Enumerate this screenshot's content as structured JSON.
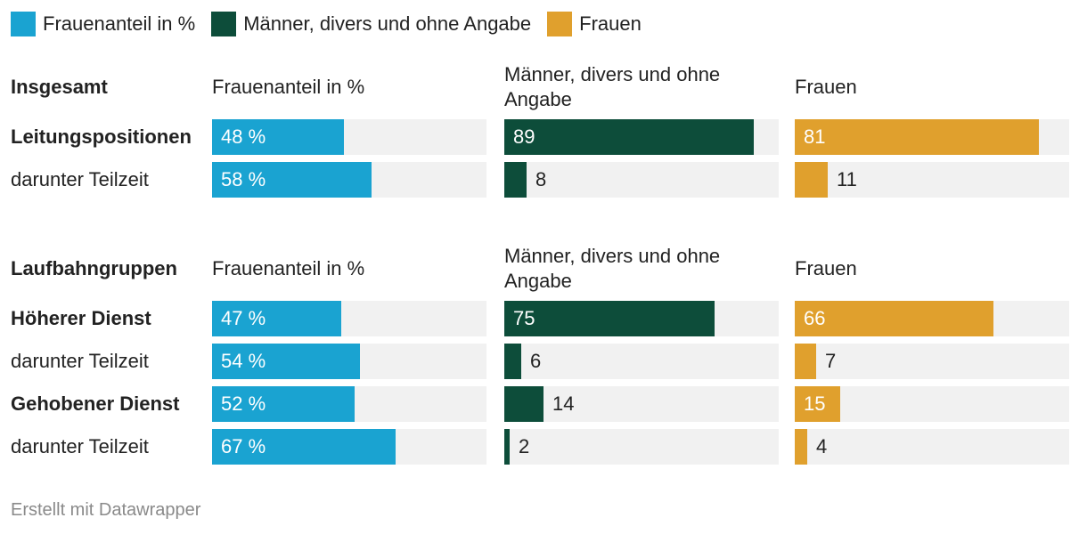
{
  "colors": {
    "share": "#1aa3d1",
    "men": "#0d4d3a",
    "women": "#e0a02d",
    "track": "#f1f1f1"
  },
  "legend": [
    {
      "label": "Frauenanteil in %",
      "color": "#1aa3d1"
    },
    {
      "label": "Männer, divers und ohne Angabe",
      "color": "#0d4d3a"
    },
    {
      "label": "Frauen",
      "color": "#e0a02d"
    }
  ],
  "footer": "Erstellt mit Datawrapper",
  "chart_data": {
    "type": "bar",
    "columns": [
      {
        "key": "share",
        "name": "Frauenanteil in %",
        "unit": "%",
        "xlim": [
          0,
          100
        ]
      },
      {
        "key": "men",
        "name": "Männer, divers und ohne Angabe",
        "xlim": [
          0,
          98
        ]
      },
      {
        "key": "women",
        "name": "Frauen",
        "xlim": [
          0,
          91
        ]
      }
    ],
    "sections": [
      {
        "title": "Insgesamt",
        "headers": [
          "Frauenanteil in %",
          "Männer, divers und ohne Angabe",
          "Frauen"
        ],
        "rows": [
          {
            "label": "Leitungspositionen",
            "bold": true,
            "share": 48,
            "men": 89,
            "women": 81,
            "share_label": "48 %",
            "men_label": "89",
            "women_label": "81"
          },
          {
            "label": "darunter Teilzeit",
            "bold": false,
            "share": 58,
            "men": 8,
            "women": 11,
            "share_label": "58 %",
            "men_label": "8",
            "women_label": "11"
          }
        ]
      },
      {
        "title": "Laufbahngruppen",
        "headers": [
          "Frauenanteil in %",
          "Männer, divers und ohne Angabe",
          "Frauen"
        ],
        "rows": [
          {
            "label": "Höherer Dienst",
            "bold": true,
            "share": 47,
            "men": 75,
            "women": 66,
            "share_label": "47 %",
            "men_label": "75",
            "women_label": "66"
          },
          {
            "label": "darunter Teilzeit",
            "bold": false,
            "share": 54,
            "men": 6,
            "women": 7,
            "share_label": "54 %",
            "men_label": "6",
            "women_label": "7"
          },
          {
            "label": "Gehobener Dienst",
            "bold": true,
            "share": 52,
            "men": 14,
            "women": 15,
            "share_label": "52 %",
            "men_label": "14",
            "women_label": "15"
          },
          {
            "label": "darunter Teilzeit",
            "bold": false,
            "share": 67,
            "men": 2,
            "women": 4,
            "share_label": "67 %",
            "men_label": "2",
            "women_label": "4"
          }
        ]
      }
    ]
  }
}
